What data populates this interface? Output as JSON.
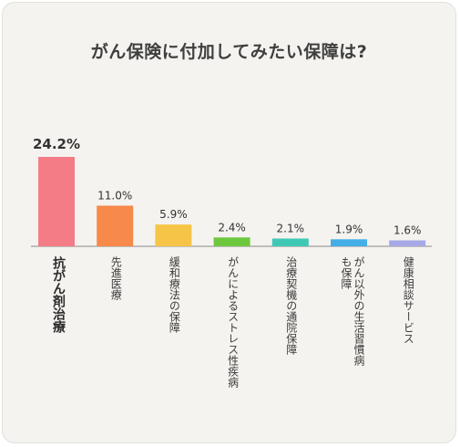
{
  "chart_data": {
    "type": "bar",
    "title": "がん保険に付加してみたい保障は?",
    "categories": [
      "抗がん剤治療",
      "先進医療",
      "緩和療法の保障",
      "がんによるストレス性疾病",
      "治療契機の通院保障",
      "がん以外の生活習慣病も保障",
      "健康相談サービス"
    ],
    "category_lines": [
      [
        "抗がん剤治療"
      ],
      [
        "先進医療"
      ],
      [
        "緩和療法の保障"
      ],
      [
        "がんによるストレス性疾病"
      ],
      [
        "治療契機の通院保障"
      ],
      [
        "がん以外の生活習慣病",
        "も保障"
      ],
      [
        "健康相談サービス"
      ]
    ],
    "values": [
      24.2,
      11.0,
      5.9,
      2.4,
      2.1,
      1.9,
      1.6
    ],
    "value_labels": [
      "24.2%",
      "11.0%",
      "5.9%",
      "2.4%",
      "2.1%",
      "1.9%",
      "1.6%"
    ],
    "colors": [
      "#f47c86",
      "#f7894a",
      "#f6c548",
      "#6ec83e",
      "#3fc9b5",
      "#45aee6",
      "#a6a9e6"
    ],
    "ylim": [
      0,
      24.2
    ],
    "grid": false,
    "legend": "none"
  }
}
